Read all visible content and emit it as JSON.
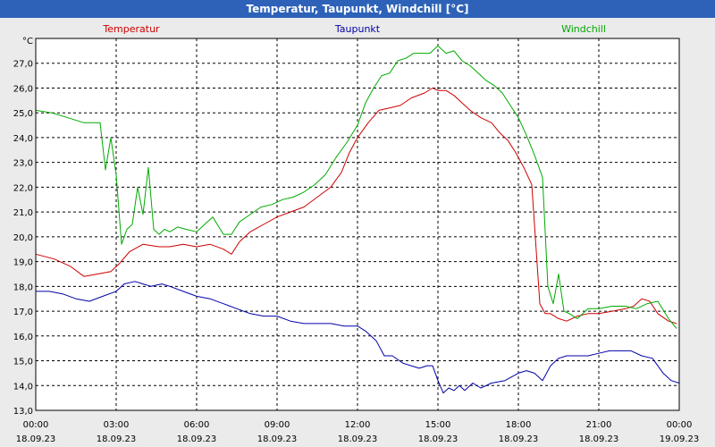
{
  "chart_data": {
    "type": "line",
    "title": "Temperatur, Taupunkt, Windchill [°C]",
    "ylabel": "°C",
    "ylim": [
      13.0,
      28.0
    ],
    "yticks": [
      "13,0",
      "14,0",
      "15,0",
      "16,0",
      "17,0",
      "18,0",
      "19,0",
      "20,0",
      "21,0",
      "22,0",
      "23,0",
      "24,0",
      "25,0",
      "26,0",
      "27,0"
    ],
    "xlim": [
      0,
      24
    ],
    "xticks": [
      {
        "time": "00:00",
        "date": "18.09.23"
      },
      {
        "time": "03:00",
        "date": "18.09.23"
      },
      {
        "time": "06:00",
        "date": "18.09.23"
      },
      {
        "time": "09:00",
        "date": "18.09.23"
      },
      {
        "time": "12:00",
        "date": "18.09.23"
      },
      {
        "time": "15:00",
        "date": "18.09.23"
      },
      {
        "time": "18:00",
        "date": "18.09.23"
      },
      {
        "time": "21:00",
        "date": "18.09.23"
      },
      {
        "time": "00:00",
        "date": "19.09.23"
      }
    ],
    "grid": true,
    "series": [
      {
        "name": "Temperatur",
        "color": "#cc0000",
        "x": [
          0,
          0.7,
          1.3,
          1.8,
          2.3,
          2.8,
          3.1,
          3.5,
          4.0,
          4.6,
          5.0,
          5.5,
          6.0,
          6.5,
          7.0,
          7.3,
          7.6,
          8.0,
          8.5,
          9.0,
          9.5,
          10.0,
          10.5,
          11.0,
          11.4,
          11.7,
          12.0,
          12.4,
          12.8,
          13.2,
          13.6,
          14.0,
          14.5,
          14.8,
          15.0,
          15.3,
          15.6,
          15.9,
          16.2,
          16.6,
          17.0,
          17.3,
          17.6,
          17.9,
          18.2,
          18.5,
          18.8,
          19.0,
          19.2,
          19.5,
          19.8,
          20.2,
          20.6,
          21.0,
          21.5,
          22.0,
          22.3,
          22.6,
          22.9,
          23.2,
          23.6,
          23.9
        ],
        "y": [
          19.3,
          19.1,
          18.8,
          18.4,
          18.5,
          18.6,
          18.9,
          19.4,
          19.7,
          19.6,
          19.6,
          19.7,
          19.6,
          19.7,
          19.5,
          19.3,
          19.8,
          20.2,
          20.5,
          20.8,
          21.0,
          21.2,
          21.6,
          22.0,
          22.6,
          23.4,
          24.0,
          24.6,
          25.1,
          25.2,
          25.3,
          25.6,
          25.8,
          26.0,
          25.9,
          25.9,
          25.7,
          25.4,
          25.1,
          24.8,
          24.6,
          24.2,
          23.9,
          23.4,
          22.8,
          22.1,
          17.3,
          16.9,
          16.9,
          16.7,
          16.6,
          16.8,
          16.9,
          16.9,
          17.0,
          17.1,
          17.2,
          17.5,
          17.4,
          16.9,
          16.6,
          16.5
        ]
      },
      {
        "name": "Taupunkt",
        "color": "#0000aa",
        "x": [
          0,
          0.5,
          1.0,
          1.5,
          2.0,
          2.5,
          3.0,
          3.3,
          3.7,
          4.0,
          4.3,
          4.7,
          5.0,
          5.5,
          6.0,
          6.5,
          7.0,
          7.5,
          8.0,
          8.5,
          9.0,
          9.5,
          10.0,
          10.5,
          11.0,
          11.5,
          12.0,
          12.3,
          12.7,
          13.0,
          13.3,
          13.7,
          14.0,
          14.3,
          14.6,
          14.8,
          15.0,
          15.2,
          15.4,
          15.6,
          15.8,
          16.0,
          16.3,
          16.6,
          17.0,
          17.5,
          18.0,
          18.3,
          18.6,
          18.9,
          19.2,
          19.5,
          19.8,
          20.2,
          20.6,
          21.0,
          21.4,
          21.8,
          22.2,
          22.6,
          23.0,
          23.4,
          23.7,
          24.0
        ],
        "y": [
          17.8,
          17.8,
          17.7,
          17.5,
          17.4,
          17.6,
          17.8,
          18.1,
          18.2,
          18.1,
          18.0,
          18.1,
          18.0,
          17.8,
          17.6,
          17.5,
          17.3,
          17.1,
          16.9,
          16.8,
          16.8,
          16.6,
          16.5,
          16.5,
          16.5,
          16.4,
          16.4,
          16.2,
          15.8,
          15.2,
          15.2,
          14.9,
          14.8,
          14.7,
          14.8,
          14.8,
          14.2,
          13.7,
          13.9,
          13.8,
          14.0,
          13.8,
          14.1,
          13.9,
          14.1,
          14.2,
          14.5,
          14.6,
          14.5,
          14.2,
          14.8,
          15.1,
          15.2,
          15.2,
          15.2,
          15.3,
          15.4,
          15.4,
          15.4,
          15.2,
          15.1,
          14.5,
          14.2,
          14.1
        ]
      },
      {
        "name": "Windchill",
        "color": "#00aa00",
        "x": [
          0,
          0.6,
          1.2,
          1.8,
          2.4,
          2.6,
          2.8,
          3.0,
          3.2,
          3.4,
          3.6,
          3.8,
          4.0,
          4.2,
          4.4,
          4.6,
          4.8,
          5.0,
          5.3,
          5.6,
          6.0,
          6.3,
          6.6,
          7.0,
          7.3,
          7.6,
          8.0,
          8.4,
          8.8,
          9.2,
          9.6,
          10.0,
          10.4,
          10.8,
          11.2,
          11.6,
          12.0,
          12.3,
          12.6,
          12.9,
          13.2,
          13.5,
          13.8,
          14.1,
          14.4,
          14.7,
          15.0,
          15.3,
          15.6,
          15.9,
          16.2,
          16.5,
          16.8,
          17.1,
          17.4,
          17.7,
          18.0,
          18.3,
          18.6,
          18.9,
          19.1,
          19.3,
          19.5,
          19.7,
          19.9,
          20.2,
          20.6,
          21.0,
          21.5,
          22.0,
          22.4,
          22.8,
          23.2,
          23.6,
          23.9
        ],
        "y": [
          25.1,
          25.0,
          24.8,
          24.6,
          24.6,
          22.7,
          24.0,
          22.5,
          19.7,
          20.3,
          20.5,
          22.0,
          20.9,
          22.8,
          20.3,
          20.1,
          20.3,
          20.2,
          20.4,
          20.3,
          20.2,
          20.5,
          20.8,
          20.1,
          20.1,
          20.6,
          20.9,
          21.2,
          21.3,
          21.5,
          21.6,
          21.8,
          22.1,
          22.5,
          23.2,
          23.8,
          24.5,
          25.4,
          26.0,
          26.5,
          26.6,
          27.1,
          27.2,
          27.4,
          27.4,
          27.4,
          27.7,
          27.4,
          27.5,
          27.1,
          26.9,
          26.6,
          26.3,
          26.1,
          25.8,
          25.3,
          24.8,
          24.1,
          23.3,
          22.4,
          18.0,
          17.3,
          18.5,
          17.0,
          16.9,
          16.7,
          17.1,
          17.1,
          17.2,
          17.2,
          17.1,
          17.3,
          17.4,
          16.7,
          16.3
        ]
      }
    ]
  }
}
